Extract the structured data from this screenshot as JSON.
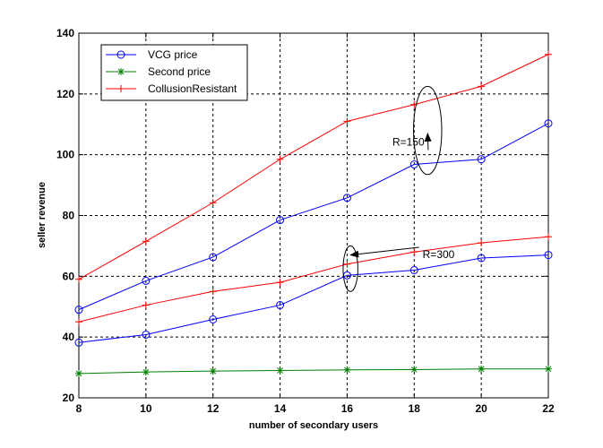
{
  "chart_data": {
    "type": "line",
    "title": "",
    "xlabel": "number of secondary users",
    "ylabel": "seller revenue",
    "xlim": [
      8,
      22
    ],
    "ylim": [
      20,
      140
    ],
    "x": [
      8,
      10,
      12,
      14,
      16,
      18,
      20,
      22
    ],
    "xticks": [
      8,
      10,
      12,
      14,
      16,
      18,
      20,
      22
    ],
    "yticks": [
      20,
      40,
      60,
      80,
      100,
      120,
      140
    ],
    "grid": true,
    "legend_position": "top-left",
    "series": [
      {
        "name": "VCG price",
        "group": "R=150",
        "color": "#0000ff",
        "marker": "circle",
        "values": [
          49,
          58.5,
          66.3,
          78.5,
          85.8,
          96.8,
          98.5,
          110.3
        ]
      },
      {
        "name": "CollusionResistant",
        "group": "R=150",
        "color": "#ff0000",
        "marker": "plus",
        "values": [
          59,
          71.5,
          84.2,
          98.5,
          111,
          116.5,
          122.5,
          133
        ]
      },
      {
        "name": "VCG price",
        "group": "R=300",
        "color": "#0000ff",
        "marker": "circle",
        "values": [
          38.2,
          40.8,
          45.8,
          50.5,
          60.3,
          62,
          66,
          67
        ]
      },
      {
        "name": "CollusionResistant",
        "group": "R=300",
        "color": "#ff0000",
        "marker": "plus",
        "values": [
          45,
          50.5,
          55,
          58,
          64,
          68,
          71,
          73
        ]
      },
      {
        "name": "Second price",
        "group": "",
        "color": "#008000",
        "marker": "star",
        "values": [
          28,
          28.5,
          28.8,
          29,
          29.2,
          29.3,
          29.5,
          29.5
        ]
      }
    ],
    "legend": [
      {
        "label": "VCG price",
        "color": "#0000ff",
        "marker": "circle"
      },
      {
        "label": "Second price",
        "color": "#008000",
        "marker": "star"
      },
      {
        "label": "CollusionResistant",
        "color": "#ff0000",
        "marker": "plus"
      }
    ],
    "annotations": [
      {
        "text": "R=150",
        "x": 17.35,
        "y": 103,
        "target_x": 18.4,
        "target_y": 107,
        "ellipse_x": 18.4,
        "ellipse_y": 108,
        "rx": 0.42,
        "ry": 14.5
      },
      {
        "text": "R=300",
        "x": 18.25,
        "y": 66,
        "target_x": 16.1,
        "target_y": 67,
        "ellipse_x": 16.1,
        "ellipse_y": 62.5,
        "rx": 0.22,
        "ry": 7.5
      }
    ]
  }
}
